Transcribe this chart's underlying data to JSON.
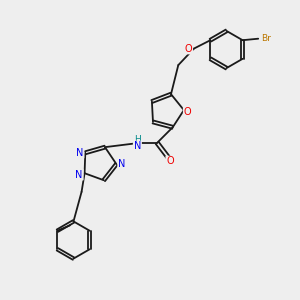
{
  "bg_color": "#eeeeee",
  "atom_colors": {
    "C": "#1a1a1a",
    "N": "#0000ee",
    "O": "#ee0000",
    "Br": "#bb7700",
    "H": "#008888"
  },
  "figsize": [
    3.0,
    3.0
  ],
  "dpi": 100,
  "lw": 1.3,
  "fs": 7.0,
  "fs_br": 6.5,
  "xlim": [
    0,
    10
  ],
  "ylim": [
    0,
    10
  ]
}
